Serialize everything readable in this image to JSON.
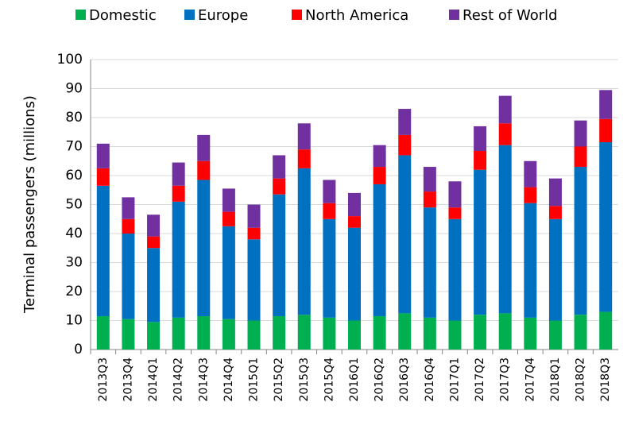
{
  "chart_data": {
    "type": "stacked-bar",
    "y_label": "Terminal passengers (millions)",
    "categories": [
      "2013Q3",
      "2013Q4",
      "2014Q1",
      "2014Q2",
      "2014Q3",
      "2014Q4",
      "2015Q1",
      "2015Q2",
      "2015Q3",
      "2015Q4",
      "2016Q1",
      "2016Q2",
      "2016Q3",
      "2016Q4",
      "2017Q1",
      "2017Q2",
      "2017Q3",
      "2017Q4",
      "2018Q1",
      "2018Q2",
      "2018Q3"
    ],
    "series": [
      {
        "name": "Domestic",
        "color": "#00b050",
        "values": [
          11.5,
          10.5,
          9.5,
          11,
          11.5,
          10.5,
          10,
          11.5,
          12,
          11,
          10,
          11.5,
          12.5,
          11,
          10,
          12,
          12.5,
          11,
          10,
          12,
          13
        ]
      },
      {
        "name": "Europe",
        "color": "#0070c0",
        "values": [
          45,
          29.5,
          25.5,
          40,
          47,
          32,
          28,
          42,
          50.5,
          34,
          32,
          45.5,
          54.5,
          38,
          35,
          50,
          58,
          39.5,
          35,
          51,
          58.5
        ]
      },
      {
        "name": "North America",
        "color": "#ff0000",
        "values": [
          6,
          5,
          4,
          5.5,
          6.5,
          5,
          4,
          5.5,
          6.5,
          5.5,
          4,
          6,
          7,
          5.5,
          4,
          6.5,
          7.5,
          5.5,
          4.5,
          7,
          8
        ]
      },
      {
        "name": "Rest of World",
        "color": "#7030a0",
        "values": [
          8.5,
          7.5,
          7.5,
          8,
          9,
          8,
          8,
          8,
          9,
          8,
          8,
          7.5,
          9,
          8.5,
          9,
          8.5,
          9.5,
          9,
          9.5,
          9,
          10
        ]
      }
    ],
    "ylim": [
      0,
      100
    ],
    "yticks": [
      0,
      10,
      20,
      30,
      40,
      50,
      60,
      70,
      80,
      90,
      100
    ],
    "grid": true,
    "legend": "top"
  }
}
